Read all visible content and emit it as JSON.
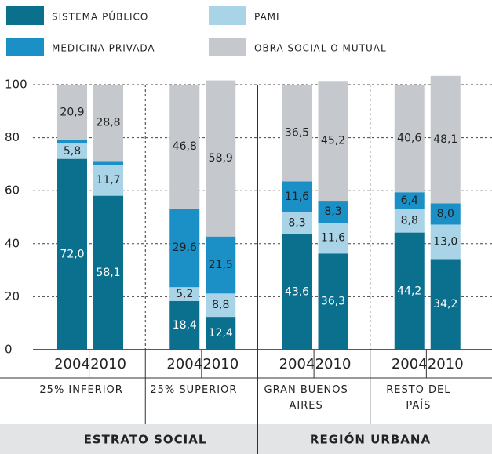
{
  "chart_data": {
    "type": "stacked-bar",
    "categories": [
      "2004",
      "2010",
      "2004",
      "2010",
      "2004",
      "2010",
      "2004",
      "2010"
    ],
    "groups": [
      "25% INFERIOR",
      "25% SUPERIOR",
      "GRAN BUENOS AIRES",
      "RESTO DEL PAÍS"
    ],
    "supergroups": [
      "ESTRATO SOCIAL",
      "REGIÓN URBANA"
    ],
    "series": [
      {
        "name": "SISTEMA PÚBLICO",
        "color": "#0b6f8e",
        "values": [
          72.0,
          58.1,
          18.4,
          12.4,
          43.6,
          36.3,
          44.2,
          34.2
        ],
        "value_labels": [
          "72,0",
          "58,1",
          "18,4",
          "12,4",
          "43,6",
          "36,3",
          "44,2",
          "34,2"
        ]
      },
      {
        "name": "PAMI",
        "color": "#a9d4e8",
        "values": [
          5.8,
          11.7,
          5.2,
          8.8,
          8.3,
          11.6,
          8.8,
          13.0
        ],
        "value_labels": [
          "5,8",
          "11,7",
          "5,2",
          "8,8",
          "8,3",
          "11,6",
          "8,8",
          "13,0"
        ]
      },
      {
        "name": "MEDICINA PRIVADA",
        "color": "#1b90c7",
        "values": [
          1.3,
          1.4,
          29.6,
          21.5,
          11.6,
          8.3,
          6.4,
          8.0
        ],
        "value_labels": [
          "1,3",
          "1,4",
          "29,6",
          "21,5",
          "11,6",
          "8,3",
          "6,4",
          "8,0"
        ]
      },
      {
        "name": "OBRA SOCIAL O MUTUAL",
        "color": "#c5c9cd",
        "values": [
          20.9,
          28.8,
          46.8,
          58.9,
          36.5,
          45.2,
          40.6,
          48.1
        ],
        "value_labels": [
          "20,9",
          "28,8",
          "46,8",
          "58,9",
          "36,5",
          "45,2",
          "40,6",
          "48,1"
        ]
      }
    ],
    "ylim": [
      0,
      100
    ],
    "yticks": [
      0,
      20,
      40,
      60,
      80,
      100
    ],
    "grid": true
  }
}
